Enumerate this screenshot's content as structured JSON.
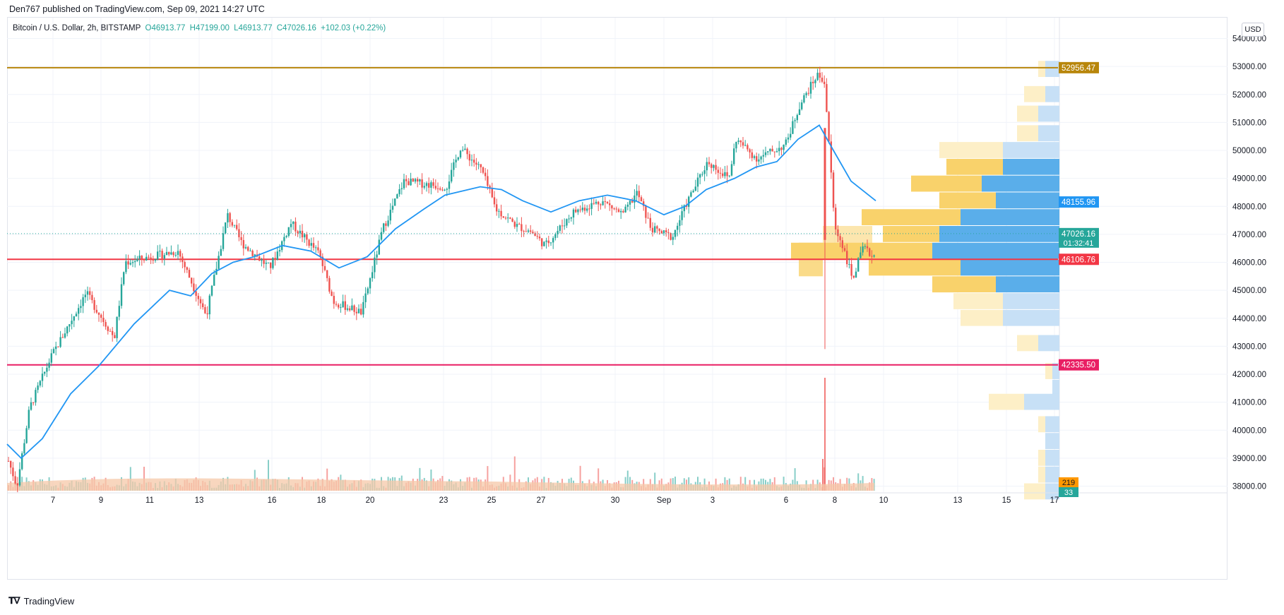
{
  "header": {
    "publisher": "Den767 published on TradingView.com, Sep 09, 2021 14:27 UTC"
  },
  "legend": {
    "symbol": "Bitcoin / U.S. Dollar, 2h, BITSTAMP",
    "open": "O46913.77",
    "high": "H47199.00",
    "low": "L46913.77",
    "close": "C47026.16",
    "change": "+102.03 (+0.22%)"
  },
  "currency": "USD",
  "footer": {
    "brand": "TradingView",
    "logo": "tradingview-logo-icon"
  },
  "colors": {
    "up": "#26a69a",
    "down": "#ef5350",
    "ma": "#2196f3",
    "resistance": "#b8860b",
    "support_mid": "#f23645",
    "support_low": "#e91e63",
    "vp_up": "#5aaeea",
    "vp_down": "#f9d26b",
    "vp_up_light": "#c7e0f6",
    "vp_down_light": "#fdefc7",
    "volume_avg": "#f5c8a8"
  },
  "chart_data": {
    "type": "candlestick",
    "title": "Bitcoin / U.S. Dollar, 2h, BITSTAMP",
    "ylim": [
      37600,
      55000
    ],
    "y_ticks": [
      "54000.00",
      "53000.00",
      "52000.00",
      "51000.00",
      "50000.00",
      "49000.00",
      "48000.00",
      "47000.00",
      "46000.00",
      "45000.00",
      "44000.00",
      "43000.00",
      "42000.00",
      "41000.00",
      "40000.00",
      "39000.00",
      "38000.00"
    ],
    "x_ticks": [
      "7",
      "9",
      "11",
      "13",
      "16",
      "18",
      "20",
      "23",
      "25",
      "27",
      "30",
      "Sep",
      "3",
      "6",
      "8",
      "10",
      "13",
      "15",
      "17"
    ],
    "horizontal_lines": [
      {
        "label": "52956.47",
        "value": 52956.47,
        "color": "#b8860b"
      },
      {
        "label": "46106.76",
        "value": 46106.76,
        "color": "#f23645"
      },
      {
        "label": "42335.50",
        "value": 42335.5,
        "color": "#e91e63"
      }
    ],
    "price_labels": [
      {
        "label": "48155.96",
        "value": 48155.96,
        "color": "#2196f3"
      },
      {
        "label": "47026.16",
        "sub": "01:32:41",
        "value": 47026.16,
        "color": "#26a69a"
      }
    ],
    "last_price": 47026.16,
    "price_path": [
      [
        0,
        38900
      ],
      [
        12,
        38000
      ],
      [
        30,
        40800
      ],
      [
        60,
        42600
      ],
      [
        110,
        44900
      ],
      [
        150,
        43300
      ],
      [
        165,
        46000
      ],
      [
        240,
        46400
      ],
      [
        280,
        44100
      ],
      [
        310,
        47700
      ],
      [
        330,
        46700
      ],
      [
        370,
        45800
      ],
      [
        400,
        47400
      ],
      [
        440,
        46300
      ],
      [
        460,
        44600
      ],
      [
        500,
        44200
      ],
      [
        530,
        47200
      ],
      [
        560,
        48900
      ],
      [
        620,
        48700
      ],
      [
        640,
        50100
      ],
      [
        670,
        49300
      ],
      [
        690,
        47900
      ],
      [
        720,
        47300
      ],
      [
        740,
        47100
      ],
      [
        760,
        46600
      ],
      [
        800,
        47800
      ],
      [
        840,
        48200
      ],
      [
        870,
        47700
      ],
      [
        890,
        48500
      ],
      [
        910,
        47200
      ],
      [
        940,
        46900
      ],
      [
        960,
        48100
      ],
      [
        990,
        49600
      ],
      [
        1020,
        49000
      ],
      [
        1030,
        50400
      ],
      [
        1060,
        49700
      ],
      [
        1100,
        50200
      ],
      [
        1120,
        51600
      ],
      [
        1145,
        52700
      ],
      [
        1155,
        52500
      ],
      [
        1160,
        50900
      ],
      [
        1170,
        47200
      ],
      [
        1180,
        46700
      ],
      [
        1195,
        45400
      ],
      [
        1210,
        46500
      ],
      [
        1225,
        46200
      ],
      [
        1240,
        47026
      ]
    ],
    "ma_path": [
      [
        10,
        39500
      ],
      [
        30,
        39000
      ],
      [
        60,
        39700
      ],
      [
        100,
        41300
      ],
      [
        140,
        42300
      ],
      [
        190,
        43800
      ],
      [
        240,
        45000
      ],
      [
        270,
        44800
      ],
      [
        300,
        45600
      ],
      [
        330,
        46000
      ],
      [
        360,
        46200
      ],
      [
        400,
        46600
      ],
      [
        440,
        46400
      ],
      [
        480,
        45800
      ],
      [
        520,
        46200
      ],
      [
        560,
        47200
      ],
      [
        600,
        47900
      ],
      [
        630,
        48400
      ],
      [
        680,
        48700
      ],
      [
        710,
        48600
      ],
      [
        740,
        48200
      ],
      [
        780,
        47800
      ],
      [
        820,
        48200
      ],
      [
        860,
        48400
      ],
      [
        900,
        48200
      ],
      [
        940,
        47700
      ],
      [
        970,
        48000
      ],
      [
        1000,
        48600
      ],
      [
        1040,
        49000
      ],
      [
        1070,
        49400
      ],
      [
        1100,
        49600
      ],
      [
        1130,
        50400
      ],
      [
        1160,
        50900
      ],
      [
        1180,
        50000
      ],
      [
        1205,
        48900
      ],
      [
        1240,
        48200
      ]
    ],
    "volume_spikes": [
      {
        "x": 1168,
        "height": 160,
        "color": "#ef5350"
      },
      {
        "x": 1165,
        "height": 45,
        "color": "#ef5350"
      }
    ],
    "volume_labels": [
      {
        "label": "219",
        "color": "#ff9800"
      },
      {
        "label": "33",
        "color": "#26a69a"
      }
    ],
    "volume_profile": [
      {
        "price_top": 53200,
        "price_bottom": 52600,
        "up": 0.02,
        "down": 0.01,
        "light": true
      },
      {
        "price_top": 52300,
        "price_bottom": 51700,
        "up": 0.02,
        "down": 0.03,
        "light": true
      },
      {
        "price_top": 51600,
        "price_bottom": 51000,
        "up": 0.03,
        "down": 0.03,
        "light": true
      },
      {
        "price_top": 50900,
        "price_bottom": 50300,
        "up": 0.03,
        "down": 0.03,
        "light": true
      },
      {
        "price_top": 50300,
        "price_bottom": 49700,
        "up": 0.08,
        "down": 0.09,
        "light": true
      },
      {
        "price_top": 49700,
        "price_bottom": 49100,
        "up": 0.08,
        "down": 0.08,
        "light": false
      },
      {
        "price_top": 49100,
        "price_bottom": 48500,
        "up": 0.11,
        "down": 0.1,
        "light": false
      },
      {
        "price_top": 48500,
        "price_bottom": 47900,
        "up": 0.09,
        "down": 0.08,
        "light": false
      },
      {
        "price_top": 47900,
        "price_bottom": 47300,
        "up": 0.14,
        "down": 0.14,
        "light": false
      },
      {
        "price_top": 47300,
        "price_bottom": 46700,
        "up": 0.17,
        "down": 0.08,
        "light": false
      },
      {
        "price_top": 46700,
        "price_bottom": 46100,
        "up": 0.18,
        "down": 0.2,
        "light": false
      },
      {
        "price_top": 46100,
        "price_bottom": 45500,
        "up": 0.14,
        "down": 0.13,
        "light": false
      },
      {
        "price_top": 45500,
        "price_bottom": 44900,
        "up": 0.09,
        "down": 0.09,
        "light": false
      },
      {
        "price_top": 44900,
        "price_bottom": 44300,
        "up": 0.08,
        "down": 0.07,
        "light": true
      },
      {
        "price_top": 44300,
        "price_bottom": 43700,
        "up": 0.08,
        "down": 0.06,
        "light": true
      },
      {
        "price_top": 43400,
        "price_bottom": 42800,
        "up": 0.03,
        "down": 0.03,
        "light": true
      },
      {
        "price_top": 42400,
        "price_bottom": 41800,
        "up": 0.01,
        "down": 0.01,
        "light": true
      },
      {
        "price_top": 41800,
        "price_bottom": 41200,
        "up": 0.01,
        "down": 0.0,
        "light": true
      },
      {
        "price_top": 41300,
        "price_bottom": 40700,
        "up": 0.05,
        "down": 0.05,
        "light": true
      },
      {
        "price_top": 40500,
        "price_bottom": 39900,
        "up": 0.02,
        "down": 0.01,
        "light": true
      },
      {
        "price_top": 39900,
        "price_bottom": 39300,
        "up": 0.02,
        "down": 0.0,
        "light": true
      },
      {
        "price_top": 39300,
        "price_bottom": 38700,
        "up": 0.02,
        "down": 0.01,
        "light": true
      },
      {
        "price_top": 38700,
        "price_bottom": 38100,
        "up": 0.02,
        "down": 0.01,
        "light": true
      },
      {
        "price_top": 38100,
        "price_bottom": 37500,
        "up": 0.02,
        "down": 0.03,
        "light": true
      }
    ]
  }
}
